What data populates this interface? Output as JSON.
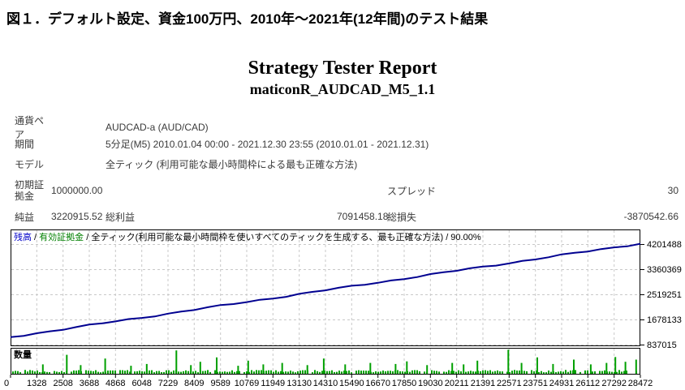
{
  "figure_title": "図１．デフォルト設定、資金100万円、2010年～2021年(12年間)のテスト結果",
  "report": {
    "title": "Strategy Tester Report",
    "subtitle": "maticonR_AUDCAD_M5_1.1"
  },
  "fields": {
    "symbol_label": "通貨ペア",
    "symbol_value": "AUDCAD-a (AUD/CAD)",
    "period_label": "期間",
    "period_value": "5分足(M5) 2010.01.04 00:00 - 2021.12.30 23:55 (2010.01.01 - 2021.12.31)",
    "model_label": "モデル",
    "model_value": "全ティック (利用可能な最小時間枠による最も正確な方法)",
    "initial_deposit_label": "初期証拠金",
    "initial_deposit_value": "1000000.00",
    "spread_label": "スプレッド",
    "spread_value": "30",
    "net_profit_label": "純益",
    "net_profit_value": "3220915.52",
    "gross_profit_label": "総利益",
    "gross_profit_value": "7091458.18",
    "gross_loss_label": "総損失",
    "gross_loss_value": "-3870542.66"
  },
  "chart_data": {
    "type": "line",
    "legend": {
      "balance_label": "残高",
      "equity_label": "有効証拠金",
      "separator": " / ",
      "model_text": "全ティック(利用可能な最小時間枠を使いすべてのティックを生成する、最も正確な方法)",
      "quality": "90.00%"
    },
    "ylabel": "",
    "xlabel": "",
    "y_ticks": [
      4201488,
      3360369,
      2519251,
      1678133,
      837015
    ],
    "x_ticks": [
      0,
      1328,
      2508,
      3688,
      4868,
      6048,
      7229,
      8409,
      9589,
      10769,
      11949,
      13130,
      14310,
      15490,
      16670,
      17850,
      19030,
      20211,
      21391,
      22571,
      23751,
      24931,
      26112,
      27292,
      28472
    ],
    "balance_series": {
      "start_value": 1090000,
      "end_value": 4220915.52,
      "shape": "near-linear rising"
    },
    "volume_panel_label": "数量",
    "volume_spikes": [
      [
        0.05,
        0.28
      ],
      [
        0.088,
        0.72
      ],
      [
        0.11,
        0.25
      ],
      [
        0.149,
        0.55
      ],
      [
        0.19,
        0.22
      ],
      [
        0.215,
        0.3
      ],
      [
        0.262,
        0.92
      ],
      [
        0.285,
        0.25
      ],
      [
        0.3,
        0.4
      ],
      [
        0.326,
        0.6
      ],
      [
        0.36,
        0.22
      ],
      [
        0.376,
        0.45
      ],
      [
        0.4,
        0.28
      ],
      [
        0.43,
        0.35
      ],
      [
        0.47,
        0.25
      ],
      [
        0.496,
        0.55
      ],
      [
        0.53,
        0.28
      ],
      [
        0.57,
        0.35
      ],
      [
        0.61,
        0.3
      ],
      [
        0.628,
        0.42
      ],
      [
        0.66,
        0.25
      ],
      [
        0.7,
        0.35
      ],
      [
        0.718,
        0.28
      ],
      [
        0.74,
        0.45
      ],
      [
        0.789,
        0.95
      ],
      [
        0.81,
        0.35
      ],
      [
        0.835,
        0.6
      ],
      [
        0.86,
        0.3
      ],
      [
        0.893,
        0.5
      ],
      [
        0.92,
        0.28
      ],
      [
        0.945,
        0.35
      ],
      [
        0.959,
        0.62
      ],
      [
        0.975,
        0.4
      ],
      [
        0.992,
        0.5
      ]
    ],
    "grid": true,
    "legend_position": "top-left-inside",
    "colors": {
      "balance_line": "#000090",
      "balance_label_text": "#0000C8",
      "equity_label_text": "#008000",
      "volume_bar": "#00A000",
      "grid_line": "#C8C8C8",
      "border": "#000000",
      "axis_text": "#000000"
    }
  }
}
